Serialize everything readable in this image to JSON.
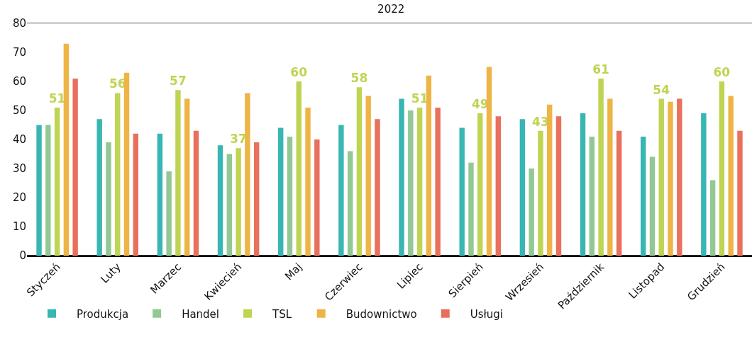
{
  "chart_data": {
    "type": "bar",
    "title": "2022",
    "categories": [
      "Styczeń",
      "Luty",
      "Marzec",
      "Kwiecień",
      "Maj",
      "Czerwiec",
      "Lipiec",
      "Sierpień",
      "Wrzesień",
      "Październik",
      "Listopad",
      "Grudzień"
    ],
    "series": [
      {
        "name": "Produkcja",
        "color": "#38b6b3",
        "values": [
          45,
          47,
          42,
          38,
          44,
          45,
          54,
          44,
          47,
          49,
          41,
          49
        ]
      },
      {
        "name": "Handel",
        "color": "#92c893",
        "values": [
          45,
          39,
          29,
          35,
          41,
          36,
          50,
          32,
          30,
          41,
          34,
          26
        ]
      },
      {
        "name": "TSL",
        "color": "#bfd452",
        "values": [
          51,
          56,
          57,
          37,
          60,
          58,
          51,
          49,
          43,
          61,
          54,
          60
        ],
        "value_labels": [
          "51",
          "56",
          "57",
          "37",
          "60",
          "58",
          "51",
          "49",
          "43",
          "61",
          "54",
          "60"
        ]
      },
      {
        "name": "Budownictwo",
        "color": "#efb446",
        "values": [
          73,
          63,
          54,
          56,
          51,
          55,
          62,
          65,
          52,
          54,
          53,
          55
        ]
      },
      {
        "name": "Usługi",
        "color": "#e8705c",
        "values": [
          61,
          42,
          43,
          39,
          40,
          47,
          51,
          48,
          48,
          43,
          54,
          43
        ]
      }
    ],
    "ylim": [
      0,
      80
    ],
    "yticks": [
      0,
      10,
      20,
      30,
      40,
      50,
      60,
      70,
      80
    ],
    "grid": false,
    "legend": "bottom"
  }
}
